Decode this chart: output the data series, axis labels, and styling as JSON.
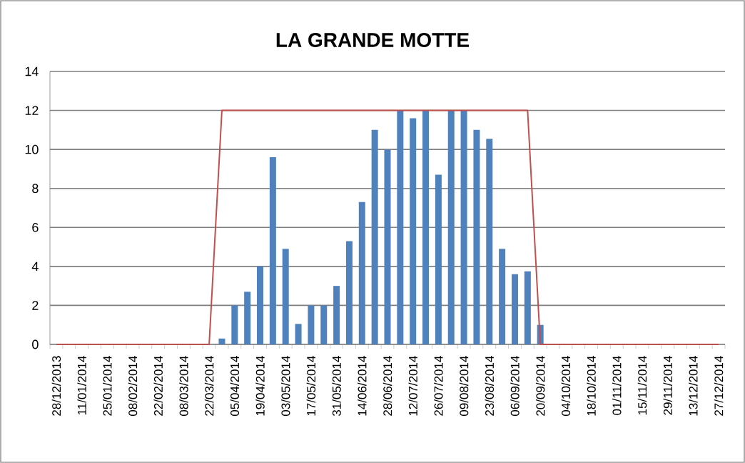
{
  "chart_data": {
    "type": "bar",
    "title": "LA GRANDE MOTTE",
    "categories": [
      "28/12/2013",
      null,
      "11/01/2014",
      null,
      "25/01/2014",
      null,
      "08/02/2014",
      null,
      "22/02/2014",
      null,
      "08/03/2014",
      null,
      "22/03/2014",
      null,
      "05/04/2014",
      null,
      "19/04/2014",
      null,
      "03/05/2014",
      null,
      "17/05/2014",
      null,
      "31/05/2014",
      null,
      "14/06/2014",
      null,
      "28/06/2014",
      null,
      "12/07/2014",
      null,
      "26/07/2014",
      null,
      "09/08/2014",
      null,
      "23/08/2014",
      null,
      "06/09/2014",
      null,
      "20/09/2014",
      null,
      "04/10/2014",
      null,
      "18/10/2014",
      null,
      "01/11/2014",
      null,
      "15/11/2014",
      null,
      "29/11/2014",
      null,
      "13/12/2014",
      null,
      "27/12/2014"
    ],
    "series": [
      {
        "color": "#4f81bd",
        "values": [
          0,
          0,
          0,
          0,
          0,
          0,
          0,
          0,
          0,
          0,
          0,
          0,
          0,
          0.3,
          2.0,
          2.7,
          4.0,
          9.6,
          4.9,
          1.05,
          2.0,
          2.0,
          3.0,
          5.3,
          7.3,
          11.0,
          10.0,
          12.0,
          11.6,
          12.0,
          8.7,
          12.0,
          12.0,
          11.0,
          10.55,
          4.9,
          3.6,
          3.75,
          1.0,
          0,
          0,
          0,
          0,
          0,
          0,
          0,
          0,
          0,
          0,
          0,
          0,
          0,
          0
        ]
      },
      {
        "type": "line",
        "color": "#c0504d",
        "values": [
          0,
          0,
          0,
          0,
          0,
          0,
          0,
          0,
          0,
          0,
          0,
          0,
          0,
          12,
          12,
          12,
          12,
          12,
          12,
          12,
          12,
          12,
          12,
          12,
          12,
          12,
          12,
          12,
          12,
          12,
          12,
          12,
          12,
          12,
          12,
          12,
          12,
          12,
          0,
          0,
          0,
          0,
          0,
          0,
          0,
          0,
          0,
          0,
          0,
          0,
          0,
          0,
          0
        ]
      }
    ],
    "ylim": [
      0,
      14
    ],
    "yticks": [
      0,
      2,
      4,
      6,
      8,
      10,
      12,
      14
    ],
    "grid": "y",
    "marker": "none",
    "line_style": "solid"
  }
}
